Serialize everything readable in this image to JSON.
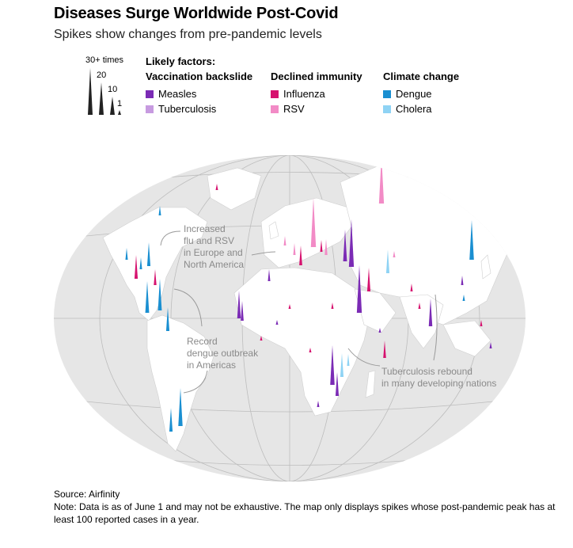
{
  "header": {
    "title": "Diseases Surge Worldwide Post-Covid",
    "subtitle": "Spikes show changes from pre-pandemic levels"
  },
  "scale_legend": {
    "top": "30+ times",
    "mid": "20",
    "low": "10",
    "min": "1"
  },
  "factors": {
    "heading": "Likely factors:",
    "groups": [
      {
        "title": "Vaccination backslide",
        "items": [
          {
            "label": "Measles",
            "color": "#7b2bb5"
          },
          {
            "label": "Tuberculosis",
            "color": "#c79be0"
          }
        ]
      },
      {
        "title": "Declined immunity",
        "items": [
          {
            "label": "Influenza",
            "color": "#d6126f"
          },
          {
            "label": "RSV",
            "color": "#f28bc6"
          }
        ]
      },
      {
        "title": "Climate change",
        "items": [
          {
            "label": "Dengue",
            "color": "#1a8fd1"
          },
          {
            "label": "Cholera",
            "color": "#8fd3f4"
          }
        ]
      }
    ]
  },
  "annotations": {
    "europe": "Increased\nflu and RSV\nin Europe and\nNorth America",
    "dengue": "Record\ndengue outbreak\nin Americas",
    "tb": "Tuberculosis rebound\nin many developing nations"
  },
  "footer": {
    "source": "Source: Airfinity",
    "note": "Note: Data is as of June 1 and may not be exhaustive. The map only displays spikes whose post-pandemic peak has at least 100 reported cases in a year."
  },
  "colors": {
    "measles": "#7b2bb5",
    "tb": "#c79be0",
    "flu": "#d6126f",
    "rsv": "#f28bc6",
    "dengue": "#1a8fd1",
    "cholera": "#8fd3f4",
    "land": "#ffffff",
    "ocean": "#e6e6e6"
  }
}
